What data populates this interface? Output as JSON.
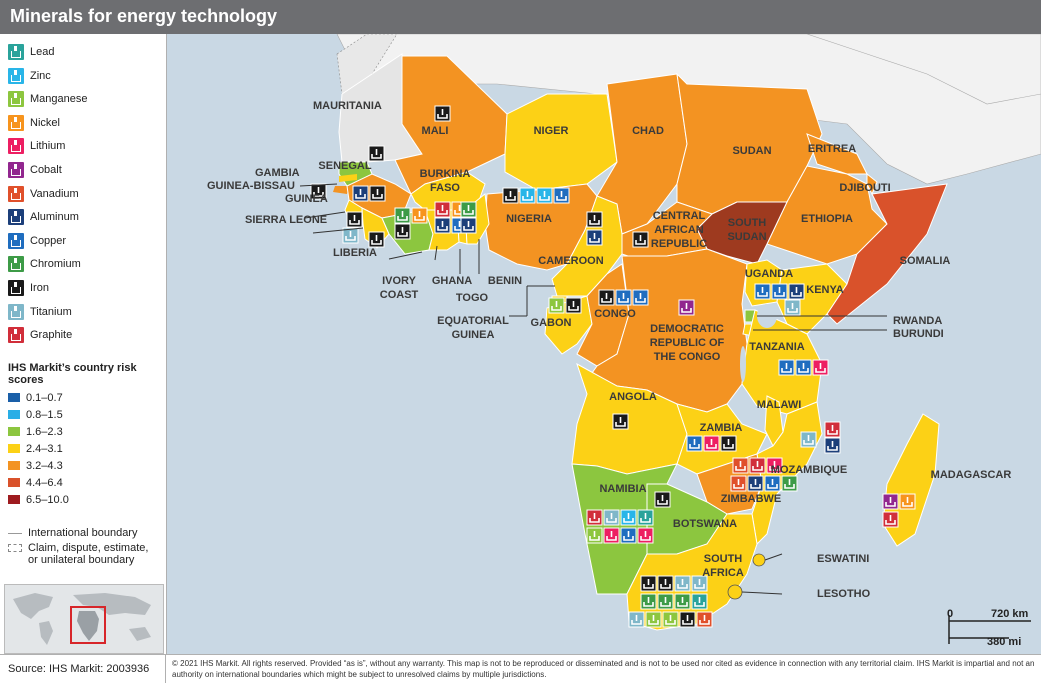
{
  "title": "Minerals for energy technology",
  "minerals": [
    {
      "label": "Lead",
      "color": "#2aa39b"
    },
    {
      "label": "Zinc",
      "color": "#29b5e8"
    },
    {
      "label": "Manganese",
      "color": "#8dc63f"
    },
    {
      "label": "Nickel",
      "color": "#f7941d"
    },
    {
      "label": "Lithium",
      "color": "#ed1f62"
    },
    {
      "label": "Cobalt",
      "color": "#92278f"
    },
    {
      "label": "Vanadium",
      "color": "#e0502b"
    },
    {
      "label": "Aluminum",
      "color": "#1c3f7a"
    },
    {
      "label": "Copper",
      "color": "#1f6dbf"
    },
    {
      "label": "Chromium",
      "color": "#3d9b47"
    },
    {
      "label": "Iron",
      "color": "#1a1a1a"
    },
    {
      "label": "Titanium",
      "color": "#7fb7c9"
    },
    {
      "label": "Graphite",
      "color": "#d12e3a"
    }
  ],
  "risk_title": "IHS Markit’s country risk scores",
  "risk_scores": [
    {
      "label": "0.1–0.7",
      "color": "#1a5fa8"
    },
    {
      "label": "0.8–1.5",
      "color": "#29aee6"
    },
    {
      "label": "1.6–2.3",
      "color": "#8cc63f"
    },
    {
      "label": "2.4–3.1",
      "color": "#fcd116"
    },
    {
      "label": "3.2–4.3",
      "color": "#f39322"
    },
    {
      "label": "4.4–6.4",
      "color": "#d9522b"
    },
    {
      "label": "6.5–10.0",
      "color": "#9e1b1f"
    }
  ],
  "boundaries": {
    "international": "International boundary",
    "claim": "Claim, dispute, estimate, or unilateral boundary"
  },
  "source": "Source: IHS Markit: 2003936",
  "copyright": "© 2021 IHS Markit. All rights reserved. Provided “as is”, without any warranty. This map is not to be reproduced or disseminated and is not to be used nor cited as evidence in connection with any territorial claim. IHS Markit is impartial and not an authority on international boundaries which might be subject to unresolved claims by multiple jurisdictions.",
  "scale": {
    "zero": "0",
    "km": "720 km",
    "mi": "380 mi"
  },
  "colors": {
    "sea": "#c9d8e4",
    "land_other": "#f2f2f2",
    "title_bar": "#6d6e71"
  },
  "countries": [
    {
      "name": "MAURITANIA",
      "score": "n/a"
    },
    {
      "name": "MALI",
      "score": "3.2–4.3"
    },
    {
      "name": "NIGER",
      "score": "2.4–3.1"
    },
    {
      "name": "CHAD",
      "score": "3.2–4.3"
    },
    {
      "name": "SUDAN",
      "score": "3.2–4.3"
    },
    {
      "name": "ERITREA",
      "score": "3.2–4.3"
    },
    {
      "name": "DJIBOUTI",
      "score": "3.2–4.3"
    },
    {
      "name": "ETHIOPIA",
      "score": "3.2–4.3"
    },
    {
      "name": "SOMALIA",
      "score": "4.4–6.4"
    },
    {
      "name": "SOUTH SUDAN",
      "score": "6.5–10.0"
    },
    {
      "name": "CENTRAL AFRICAN REPUBLIC",
      "score": "3.2–4.3"
    },
    {
      "name": "NIGERIA",
      "score": "3.2–4.3"
    },
    {
      "name": "CAMEROON",
      "score": "2.4–3.1"
    },
    {
      "name": "SENEGAL",
      "score": "1.6–2.3"
    },
    {
      "name": "GAMBIA",
      "score": "2.4–3.1"
    },
    {
      "name": "GUINEA-BISSAU",
      "score": "3.2–4.3"
    },
    {
      "name": "GUINEA",
      "score": "3.2–4.3"
    },
    {
      "name": "SIERRA LEONE",
      "score": "2.4–3.1"
    },
    {
      "name": "LIBERIA",
      "score": "2.4–3.1"
    },
    {
      "name": "BURKINA FASO",
      "score": "3.2–4.3"
    },
    {
      "name": "IVORY COAST",
      "score": "1.6–2.3"
    },
    {
      "name": "GHANA",
      "score": "2.4–3.1"
    },
    {
      "name": "TOGO",
      "score": "2.4–3.1"
    },
    {
      "name": "BENIN",
      "score": "2.4–3.1"
    },
    {
      "name": "EQUATORIAL GUINEA",
      "score": "2.4–3.1"
    },
    {
      "name": "GABON",
      "score": "2.4–3.1"
    },
    {
      "name": "CONGO",
      "score": "3.2–4.3"
    },
    {
      "name": "DEMOCRATIC REPUBLIC OF THE CONGO",
      "score": "3.2–4.3"
    },
    {
      "name": "UGANDA",
      "score": "2.4–3.1"
    },
    {
      "name": "KENYA",
      "score": "2.4–3.1"
    },
    {
      "name": "RWANDA",
      "score": "1.6–2.3"
    },
    {
      "name": "BURUNDI",
      "score": "2.4–3.1"
    },
    {
      "name": "TANZANIA",
      "score": "2.4–3.1"
    },
    {
      "name": "ANGOLA",
      "score": "2.4–3.1"
    },
    {
      "name": "ZAMBIA",
      "score": "2.4–3.1"
    },
    {
      "name": "MALAWI",
      "score": "2.4–3.1"
    },
    {
      "name": "MOZAMBIQUE",
      "score": "2.4–3.1"
    },
    {
      "name": "ZIMBABWE",
      "score": "3.2–4.3"
    },
    {
      "name": "MADAGASCAR",
      "score": "2.4–3.1"
    },
    {
      "name": "NAMIBIA",
      "score": "1.6–2.3"
    },
    {
      "name": "BOTSWANA",
      "score": "1.6–2.3"
    },
    {
      "name": "SOUTH AFRICA",
      "score": "2.4–3.1"
    },
    {
      "name": "ESWATINI",
      "score": "2.4–3.1"
    },
    {
      "name": "LESOTHO",
      "score": "2.4–3.1"
    }
  ]
}
